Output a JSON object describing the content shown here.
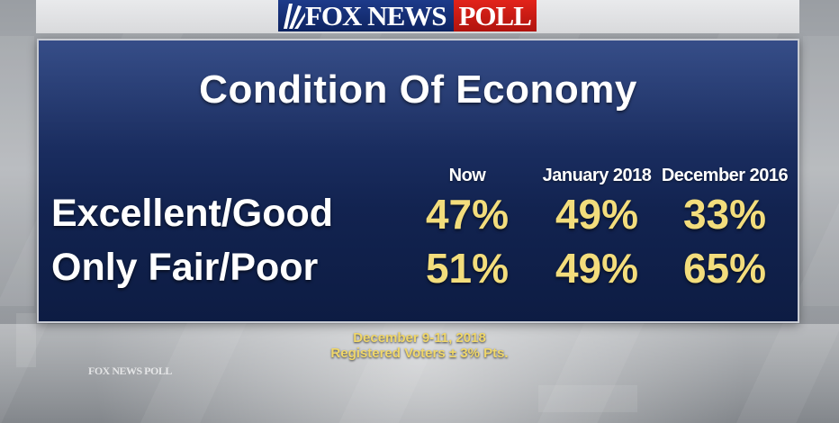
{
  "logo": {
    "fox_news": "FOX NEWS",
    "poll": "POLL",
    "watermark": "FOX NEWS POLL",
    "fox_blue": "#1d3a8a",
    "poll_red": "#e2231a"
  },
  "chart_data": {
    "type": "table",
    "title": "Condition Of Economy",
    "columns": [
      "Now",
      "January 2018",
      "December 2016"
    ],
    "rows": [
      {
        "label": "Excellent/Good",
        "values": [
          "47%",
          "49%",
          "33%"
        ]
      },
      {
        "label": "Only Fair/Poor",
        "values": [
          "51%",
          "49%",
          "65%"
        ]
      }
    ],
    "value_color": "#f3dd7c",
    "panel_color": "#1d3166"
  },
  "footer": {
    "dates": "December 9-11, 2018",
    "sample": "Registered Voters ± 3% Pts."
  }
}
